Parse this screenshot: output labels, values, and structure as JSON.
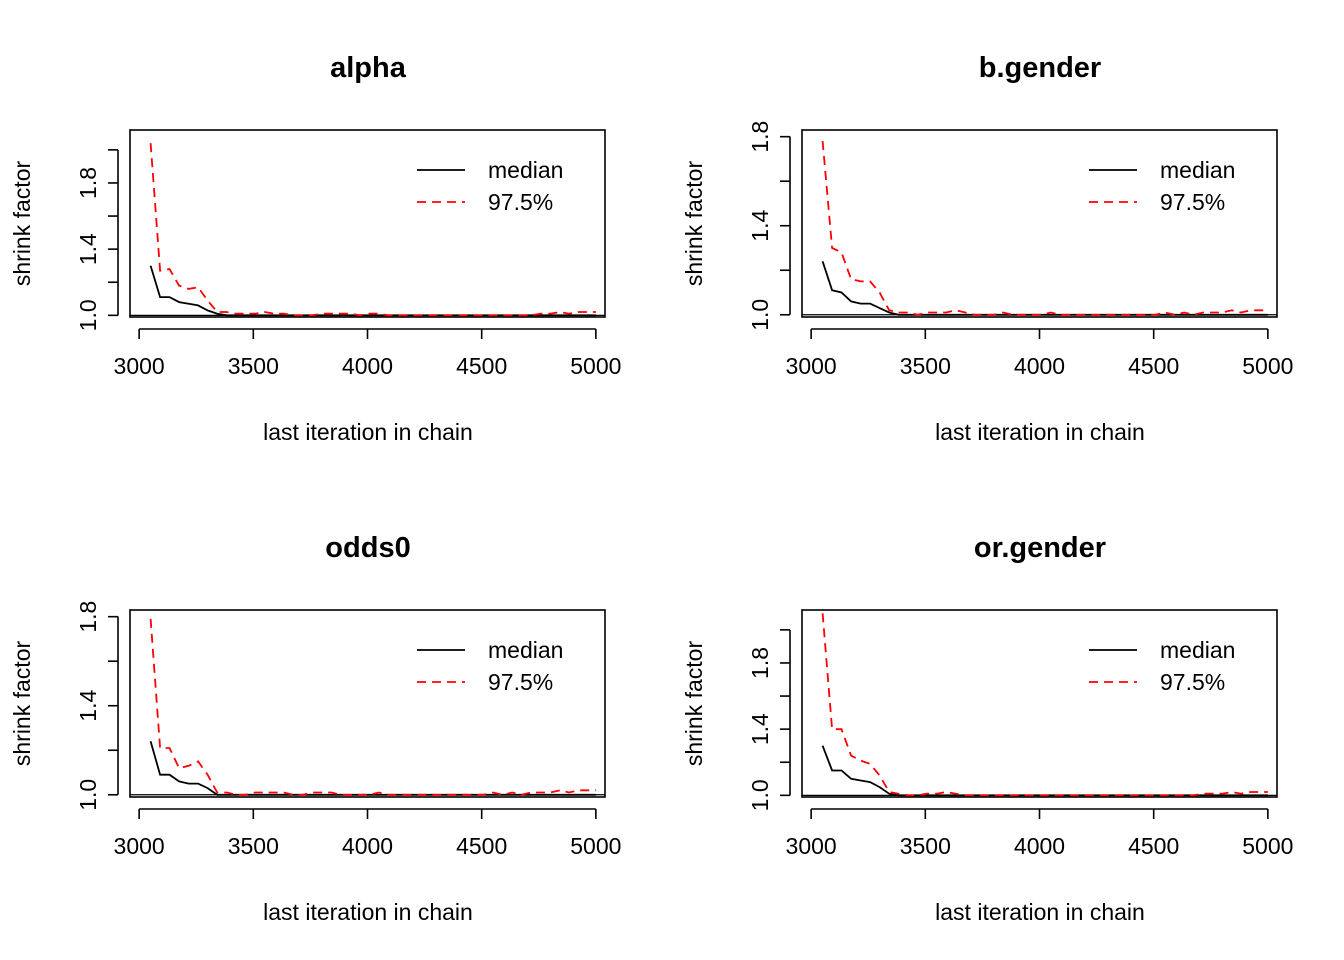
{
  "chart_data": [
    {
      "type": "line",
      "title": "alpha",
      "xlabel": "last iteration in chain",
      "ylabel": "shrink factor",
      "xlim": [
        2960,
        5040
      ],
      "ylim": [
        0.99,
        2.12
      ],
      "xticks": [
        3000,
        3500,
        4000,
        4500,
        5000
      ],
      "yticks": [
        1.0,
        1.2,
        1.4,
        1.6,
        1.8,
        2.0
      ],
      "ytick_labels": [
        "1.0",
        "",
        "1.4",
        "",
        "1.8",
        ""
      ],
      "reference_line": 1.0,
      "legend": {
        "position": "top-right",
        "entries": [
          "median",
          "97.5%"
        ]
      },
      "x": [
        3050,
        3092,
        3133,
        3175,
        3217,
        3258,
        3300,
        3342,
        3383,
        3425,
        3467,
        3508,
        3550,
        3592,
        3633,
        3675,
        3717,
        3758,
        3800,
        3842,
        3883,
        3925,
        3967,
        4008,
        4050,
        4092,
        4133,
        4175,
        4217,
        4258,
        4300,
        4342,
        4383,
        4425,
        4467,
        4508,
        4550,
        4592,
        4633,
        4675,
        4717,
        4758,
        4800,
        4842,
        4883,
        4925,
        4967,
        5000
      ],
      "series": [
        {
          "name": "median",
          "color": "#000000",
          "dash": "solid",
          "values": [
            1.3,
            1.11,
            1.11,
            1.08,
            1.07,
            1.06,
            1.03,
            1.01,
            1.0,
            1.0,
            1.0,
            1.0,
            1.0,
            1.0,
            1.0,
            1.0,
            1.0,
            1.0,
            1.0,
            1.0,
            1.0,
            1.0,
            1.0,
            1.0,
            1.0,
            1.0,
            1.0,
            1.0,
            1.0,
            1.0,
            1.0,
            1.0,
            1.0,
            1.0,
            1.0,
            1.0,
            1.0,
            1.0,
            1.0,
            1.0,
            1.0,
            1.0,
            1.0,
            1.0,
            1.0,
            1.0,
            1.0,
            1.0
          ]
        },
        {
          "name": "97.5%",
          "color": "#ff0000",
          "dash": "dashed",
          "values": [
            2.04,
            1.27,
            1.28,
            1.18,
            1.16,
            1.17,
            1.09,
            1.02,
            1.02,
            1.01,
            1.01,
            1.01,
            1.02,
            1.01,
            1.01,
            1.0,
            1.0,
            1.0,
            1.01,
            1.01,
            1.01,
            1.01,
            1.0,
            1.01,
            1.01,
            1.0,
            1.0,
            1.0,
            1.0,
            1.0,
            1.0,
            1.0,
            1.0,
            1.0,
            1.0,
            1.0,
            1.0,
            1.0,
            1.0,
            1.0,
            1.0,
            1.01,
            1.01,
            1.02,
            1.01,
            1.02,
            1.02,
            1.02
          ]
        }
      ]
    },
    {
      "type": "line",
      "title": "b.gender",
      "xlabel": "last iteration in chain",
      "ylabel": "shrink factor",
      "xlim": [
        2960,
        5040
      ],
      "ylim": [
        0.99,
        1.83
      ],
      "xticks": [
        3000,
        3500,
        4000,
        4500,
        5000
      ],
      "yticks": [
        1.0,
        1.2,
        1.4,
        1.6,
        1.8
      ],
      "ytick_labels": [
        "1.0",
        "",
        "1.4",
        "",
        "1.8"
      ],
      "reference_line": 1.0,
      "legend": {
        "position": "top-right",
        "entries": [
          "median",
          "97.5%"
        ]
      },
      "x": [
        3050,
        3092,
        3133,
        3175,
        3217,
        3258,
        3300,
        3342,
        3383,
        3425,
        3467,
        3508,
        3550,
        3592,
        3633,
        3675,
        3717,
        3758,
        3800,
        3842,
        3883,
        3925,
        3967,
        4008,
        4050,
        4092,
        4133,
        4175,
        4217,
        4258,
        4300,
        4342,
        4383,
        4425,
        4467,
        4508,
        4550,
        4592,
        4633,
        4675,
        4717,
        4758,
        4800,
        4842,
        4883,
        4925,
        4967,
        5000
      ],
      "series": [
        {
          "name": "median",
          "color": "#000000",
          "dash": "solid",
          "values": [
            1.24,
            1.11,
            1.1,
            1.06,
            1.05,
            1.05,
            1.03,
            1.01,
            1.0,
            1.0,
            1.0,
            1.0,
            1.0,
            1.0,
            1.0,
            1.0,
            1.0,
            1.0,
            1.0,
            1.0,
            1.0,
            1.0,
            1.0,
            1.0,
            1.0,
            1.0,
            1.0,
            1.0,
            1.0,
            1.0,
            1.0,
            1.0,
            1.0,
            1.0,
            1.0,
            1.0,
            1.0,
            1.0,
            1.0,
            1.0,
            1.0,
            1.0,
            1.0,
            1.0,
            1.0,
            1.0,
            1.0,
            1.0
          ]
        },
        {
          "name": "97.5%",
          "color": "#ff0000",
          "dash": "dashed",
          "values": [
            1.78,
            1.3,
            1.28,
            1.16,
            1.15,
            1.15,
            1.1,
            1.02,
            1.01,
            1.01,
            1.0,
            1.01,
            1.01,
            1.01,
            1.02,
            1.01,
            1.0,
            1.0,
            1.0,
            1.01,
            1.0,
            1.0,
            1.0,
            1.0,
            1.01,
            1.0,
            1.0,
            1.0,
            1.0,
            1.0,
            1.0,
            1.0,
            1.0,
            1.0,
            1.0,
            1.0,
            1.01,
            1.0,
            1.01,
            1.0,
            1.01,
            1.01,
            1.01,
            1.02,
            1.01,
            1.02,
            1.02,
            1.02
          ]
        }
      ]
    },
    {
      "type": "line",
      "title": "odds0",
      "xlabel": "last iteration in chain",
      "ylabel": "shrink factor",
      "xlim": [
        2960,
        5040
      ],
      "ylim": [
        0.99,
        1.83
      ],
      "xticks": [
        3000,
        3500,
        4000,
        4500,
        5000
      ],
      "yticks": [
        1.0,
        1.2,
        1.4,
        1.6,
        1.8
      ],
      "ytick_labels": [
        "1.0",
        "",
        "1.4",
        "",
        "1.8"
      ],
      "reference_line": 1.0,
      "legend": {
        "position": "top-right",
        "entries": [
          "median",
          "97.5%"
        ]
      },
      "x": [
        3050,
        3092,
        3133,
        3175,
        3217,
        3258,
        3300,
        3342,
        3383,
        3425,
        3467,
        3508,
        3550,
        3592,
        3633,
        3675,
        3717,
        3758,
        3800,
        3842,
        3883,
        3925,
        3967,
        4008,
        4050,
        4092,
        4133,
        4175,
        4217,
        4258,
        4300,
        4342,
        4383,
        4425,
        4467,
        4508,
        4550,
        4592,
        4633,
        4675,
        4717,
        4758,
        4800,
        4842,
        4883,
        4925,
        4967,
        5000
      ],
      "series": [
        {
          "name": "median",
          "color": "#000000",
          "dash": "solid",
          "values": [
            1.24,
            1.09,
            1.09,
            1.06,
            1.05,
            1.05,
            1.03,
            1.0,
            1.0,
            1.0,
            1.0,
            1.0,
            1.0,
            1.0,
            1.0,
            1.0,
            1.0,
            1.0,
            1.0,
            1.0,
            1.0,
            1.0,
            1.0,
            1.0,
            1.0,
            1.0,
            1.0,
            1.0,
            1.0,
            1.0,
            1.0,
            1.0,
            1.0,
            1.0,
            1.0,
            1.0,
            1.0,
            1.0,
            1.0,
            1.0,
            1.0,
            1.0,
            1.0,
            1.0,
            1.0,
            1.0,
            1.0,
            1.0
          ]
        },
        {
          "name": "97.5%",
          "color": "#ff0000",
          "dash": "dashed",
          "values": [
            1.79,
            1.21,
            1.21,
            1.12,
            1.13,
            1.15,
            1.09,
            1.01,
            1.01,
            1.0,
            1.0,
            1.01,
            1.01,
            1.01,
            1.01,
            1.0,
            1.0,
            1.01,
            1.01,
            1.01,
            1.0,
            1.0,
            1.0,
            1.0,
            1.01,
            1.0,
            1.0,
            1.0,
            1.0,
            1.0,
            1.0,
            1.0,
            1.0,
            1.0,
            1.0,
            1.0,
            1.01,
            1.0,
            1.01,
            1.0,
            1.01,
            1.01,
            1.01,
            1.02,
            1.01,
            1.02,
            1.02,
            1.02
          ]
        }
      ]
    },
    {
      "type": "line",
      "title": "or.gender",
      "xlabel": "last iteration in chain",
      "ylabel": "shrink factor",
      "xlim": [
        2960,
        5040
      ],
      "ylim": [
        0.99,
        2.12
      ],
      "xticks": [
        3000,
        3500,
        4000,
        4500,
        5000
      ],
      "yticks": [
        1.0,
        1.2,
        1.4,
        1.6,
        1.8,
        2.0
      ],
      "ytick_labels": [
        "1.0",
        "",
        "1.4",
        "",
        "1.8",
        ""
      ],
      "reference_line": 1.0,
      "legend": {
        "position": "top-right",
        "entries": [
          "median",
          "97.5%"
        ]
      },
      "x": [
        3050,
        3092,
        3133,
        3175,
        3217,
        3258,
        3300,
        3342,
        3383,
        3425,
        3467,
        3508,
        3550,
        3592,
        3633,
        3675,
        3717,
        3758,
        3800,
        3842,
        3883,
        3925,
        3967,
        4008,
        4050,
        4092,
        4133,
        4175,
        4217,
        4258,
        4300,
        4342,
        4383,
        4425,
        4467,
        4508,
        4550,
        4592,
        4633,
        4675,
        4717,
        4758,
        4800,
        4842,
        4883,
        4925,
        4967,
        5000
      ],
      "series": [
        {
          "name": "median",
          "color": "#000000",
          "dash": "solid",
          "values": [
            1.3,
            1.15,
            1.15,
            1.1,
            1.09,
            1.08,
            1.05,
            1.01,
            1.0,
            1.0,
            1.0,
            1.0,
            1.0,
            1.0,
            1.0,
            1.0,
            1.0,
            1.0,
            1.0,
            1.0,
            1.0,
            1.0,
            1.0,
            1.0,
            1.0,
            1.0,
            1.0,
            1.0,
            1.0,
            1.0,
            1.0,
            1.0,
            1.0,
            1.0,
            1.0,
            1.0,
            1.0,
            1.0,
            1.0,
            1.0,
            1.0,
            1.0,
            1.0,
            1.0,
            1.0,
            1.0,
            1.0,
            1.0
          ]
        },
        {
          "name": "97.5%",
          "color": "#ff0000",
          "dash": "dashed",
          "values": [
            2.1,
            1.4,
            1.4,
            1.24,
            1.21,
            1.19,
            1.12,
            1.02,
            1.01,
            1.0,
            1.0,
            1.01,
            1.01,
            1.02,
            1.01,
            1.0,
            1.0,
            1.0,
            1.0,
            1.0,
            1.0,
            1.0,
            1.0,
            1.0,
            1.0,
            1.0,
            1.0,
            1.0,
            1.0,
            1.0,
            1.0,
            1.0,
            1.0,
            1.0,
            1.0,
            1.0,
            1.0,
            1.0,
            1.0,
            1.0,
            1.01,
            1.01,
            1.01,
            1.02,
            1.01,
            1.02,
            1.02,
            1.02
          ]
        }
      ]
    }
  ]
}
